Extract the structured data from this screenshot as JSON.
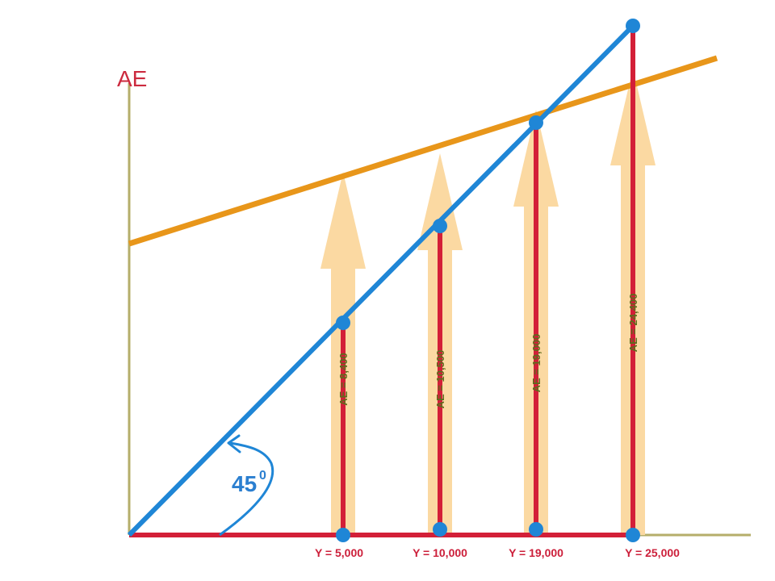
{
  "axis": {
    "y_label": "AE"
  },
  "angle": {
    "value": "45",
    "superscript": "0"
  },
  "colors": {
    "axis": "#b5ae6a",
    "ae_line": "#e8961a",
    "forty_five_line": "#1f86d6",
    "income_bar": "#d31f38",
    "arrow": "#fbd9a2",
    "label_red": "#cc1f3a",
    "ae_value_text": "#5f6b1c"
  },
  "points": [
    {
      "y_label": "Y = 5,000",
      "ae_label": "AE = 8,400"
    },
    {
      "y_label": "Y = 10,000",
      "ae_label": "AE = 10,500"
    },
    {
      "y_label": "Y = 19,000",
      "ae_label": "AE = 19,000"
    },
    {
      "y_label": "Y = 25,000",
      "ae_label": "AE = 24,400"
    }
  ]
}
